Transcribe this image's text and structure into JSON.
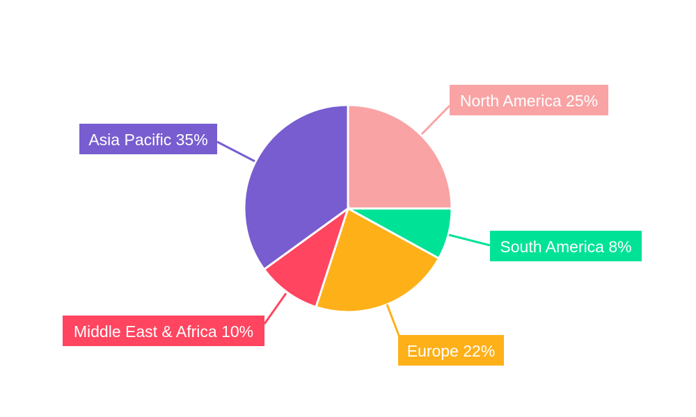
{
  "chart_data": {
    "type": "pie",
    "categories": [
      "North America",
      "South America",
      "Europe",
      "Middle East & Africa",
      "Asia Pacific"
    ],
    "values": [
      25,
      8,
      22,
      10,
      35
    ],
    "labels": [
      "North America 25%",
      "South America 8%",
      "Europe 22%",
      "Middle East & Africa 10%",
      "Asia Pacific 35%"
    ],
    "colors": [
      "#F9A3A4",
      "#00E396",
      "#FEB019",
      "#FF4560",
      "#775DD0"
    ],
    "start_angle": "top, clockwise",
    "legend": "none"
  }
}
